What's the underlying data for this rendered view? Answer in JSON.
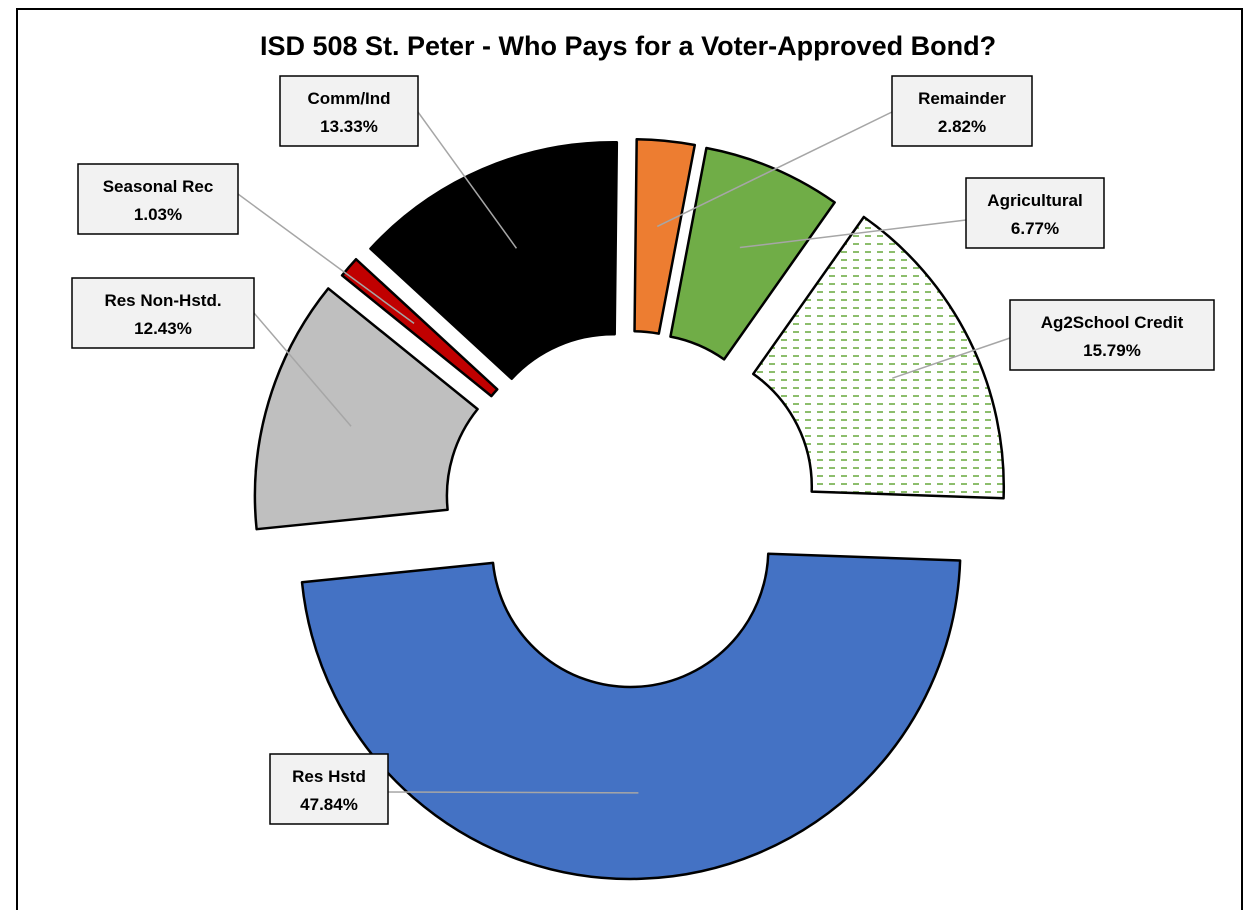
{
  "chart_data": {
    "type": "pie",
    "donut": true,
    "exploded": true,
    "title": "ISD 508 St. Peter - Who Pays for a Voter-Approved Bond?",
    "slices": [
      {
        "name": "Res Hstd",
        "value_label": "47.84%",
        "value": 47.84,
        "color": "#4472c4"
      },
      {
        "name": "Res Non-Hstd.",
        "value_label": "12.43%",
        "value": 12.43,
        "color": "#bfbfbf"
      },
      {
        "name": "Seasonal Rec",
        "value_label": "1.03%",
        "value": 1.03,
        "color": "#c00000"
      },
      {
        "name": "Comm/Ind",
        "value_label": "13.33%",
        "value": 13.33,
        "color": "#000000"
      },
      {
        "name": "Remainder",
        "value_label": "2.82%",
        "value": 2.82,
        "color": "#ed7d31"
      },
      {
        "name": "Agricultural",
        "value_label": "6.77%",
        "value": 6.77,
        "color": "#70ad47"
      },
      {
        "name": "Ag2School Credit",
        "value_label": "15.79%",
        "value": 15.79,
        "color": "pattern-green-dashes"
      }
    ]
  }
}
